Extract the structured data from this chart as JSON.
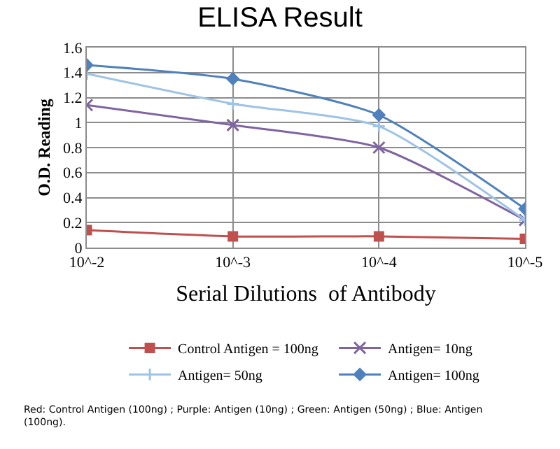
{
  "chart_data": {
    "type": "line",
    "title": "ELISA Result",
    "xlabel": "Serial Dilutions  of Antibody",
    "ylabel": "O.D. Reading",
    "categories": [
      "10^-2",
      "10^-3",
      "10^-4",
      "10^-5"
    ],
    "series": [
      {
        "name": "Control Antigen = 100ng",
        "color": "#c0504d",
        "marker": "square",
        "values": [
          0.14,
          0.09,
          0.09,
          0.07
        ]
      },
      {
        "name": "Antigen= 10ng",
        "color": "#8064a2",
        "marker": "cross",
        "values": [
          1.14,
          0.98,
          0.8,
          0.22
        ]
      },
      {
        "name": "Antigen= 50ng",
        "color": "#9dc3e6",
        "marker": "plus",
        "values": [
          1.39,
          1.15,
          0.97,
          0.22
        ]
      },
      {
        "name": "Antigen= 100ng",
        "color": "#4f81bd",
        "marker": "diamond",
        "values": [
          1.46,
          1.35,
          1.06,
          0.31
        ]
      }
    ],
    "ylim": [
      0,
      1.6
    ],
    "yticks": [
      0,
      0.2,
      0.4,
      0.6,
      0.8,
      1,
      1.2,
      1.4,
      1.6
    ],
    "grid": true,
    "legend": "bottom",
    "annotations": [
      "Red: Control Antigen (100ng) ; Purple: Antigen (10ng) ; Green: Antigen (50ng) ; Blue: Antigen (100ng)."
    ]
  }
}
